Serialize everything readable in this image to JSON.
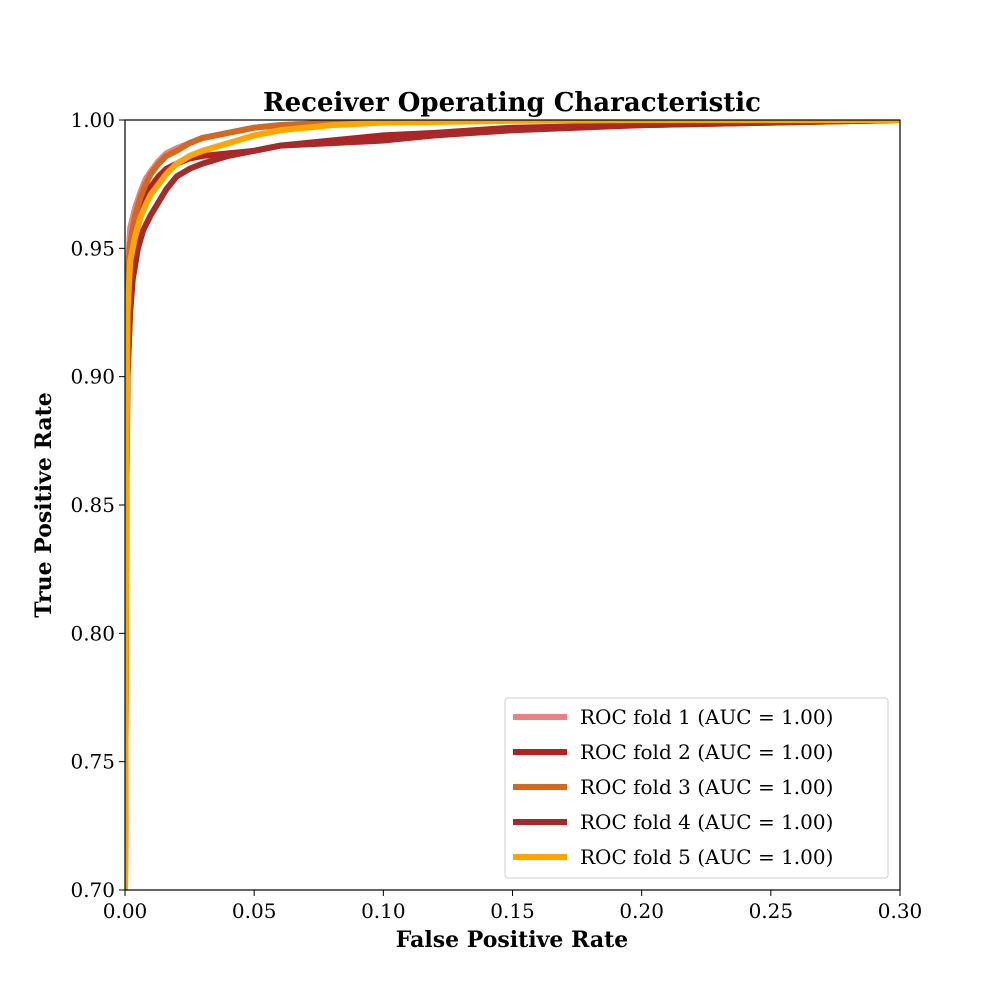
{
  "chart_data": {
    "type": "line",
    "title": "Receiver Operating Characteristic",
    "xlabel": "False Positive Rate",
    "ylabel": "True Positive Rate",
    "xlim": [
      0.0,
      0.3
    ],
    "ylim": [
      0.7,
      1.0
    ],
    "x_ticks": [
      "0.00",
      "0.05",
      "0.10",
      "0.15",
      "0.20",
      "0.25",
      "0.30"
    ],
    "y_ticks": [
      "0.70",
      "0.75",
      "0.80",
      "0.85",
      "0.90",
      "0.95",
      "1.00"
    ],
    "grid": false,
    "legend_position": "lower-right",
    "series": [
      {
        "name": "ROC fold 1 (AUC = 1.00)",
        "color": "#f08080",
        "x": [
          0.0,
          0.0005,
          0.001,
          0.002,
          0.004,
          0.006,
          0.008,
          0.01,
          0.013,
          0.016,
          0.02,
          0.025,
          0.03,
          0.04,
          0.05,
          0.06,
          0.08,
          0.1,
          0.15,
          0.2,
          0.3
        ],
        "y": [
          0.7,
          0.85,
          0.94,
          0.958,
          0.966,
          0.972,
          0.977,
          0.98,
          0.984,
          0.987,
          0.989,
          0.991,
          0.993,
          0.995,
          0.997,
          0.998,
          0.999,
          0.9995,
          0.9998,
          1.0,
          1.0
        ]
      },
      {
        "name": "ROC fold 2 (AUC = 1.00)",
        "color": "#b22222",
        "x": [
          0.0,
          0.0005,
          0.001,
          0.002,
          0.003,
          0.005,
          0.008,
          0.01,
          0.013,
          0.016,
          0.02,
          0.025,
          0.03,
          0.04,
          0.05,
          0.06,
          0.08,
          0.1,
          0.12,
          0.15,
          0.2,
          0.25,
          0.3
        ],
        "y": [
          0.7,
          0.85,
          0.92,
          0.945,
          0.955,
          0.963,
          0.97,
          0.974,
          0.978,
          0.981,
          0.983,
          0.985,
          0.986,
          0.987,
          0.988,
          0.99,
          0.992,
          0.994,
          0.995,
          0.997,
          0.998,
          0.999,
          1.0
        ]
      },
      {
        "name": "ROC fold 3 (AUC = 1.00)",
        "color": "#d2691e",
        "x": [
          0.0,
          0.0005,
          0.001,
          0.002,
          0.004,
          0.006,
          0.008,
          0.01,
          0.013,
          0.016,
          0.02,
          0.025,
          0.03,
          0.035,
          0.04,
          0.05,
          0.06,
          0.08,
          0.1,
          0.15,
          0.2,
          0.3
        ],
        "y": [
          0.7,
          0.86,
          0.935,
          0.952,
          0.963,
          0.97,
          0.975,
          0.979,
          0.983,
          0.986,
          0.988,
          0.991,
          0.993,
          0.994,
          0.995,
          0.997,
          0.998,
          0.999,
          0.9995,
          0.9998,
          1.0,
          1.0
        ]
      },
      {
        "name": "ROC fold 4 (AUC = 1.00)",
        "color": "#a52a2a",
        "x": [
          0.0,
          0.0005,
          0.001,
          0.002,
          0.003,
          0.005,
          0.007,
          0.01,
          0.013,
          0.016,
          0.02,
          0.025,
          0.03,
          0.04,
          0.05,
          0.06,
          0.08,
          0.1,
          0.12,
          0.15,
          0.2,
          0.25,
          0.3
        ],
        "y": [
          0.7,
          0.85,
          0.9,
          0.925,
          0.938,
          0.95,
          0.957,
          0.963,
          0.968,
          0.973,
          0.978,
          0.981,
          0.983,
          0.986,
          0.988,
          0.99,
          0.991,
          0.992,
          0.994,
          0.996,
          0.998,
          0.999,
          1.0
        ]
      },
      {
        "name": "ROC fold 5 (AUC = 1.00)",
        "color": "#ffa500",
        "x": [
          0.0,
          0.0005,
          0.001,
          0.002,
          0.004,
          0.006,
          0.008,
          0.01,
          0.013,
          0.016,
          0.02,
          0.025,
          0.03,
          0.04,
          0.05,
          0.06,
          0.07,
          0.08,
          0.1,
          0.15,
          0.2,
          0.3
        ],
        "y": [
          0.7,
          0.85,
          0.925,
          0.945,
          0.955,
          0.962,
          0.967,
          0.971,
          0.975,
          0.979,
          0.983,
          0.986,
          0.988,
          0.991,
          0.994,
          0.996,
          0.997,
          0.998,
          0.999,
          0.9997,
          1.0,
          1.0
        ]
      }
    ]
  }
}
